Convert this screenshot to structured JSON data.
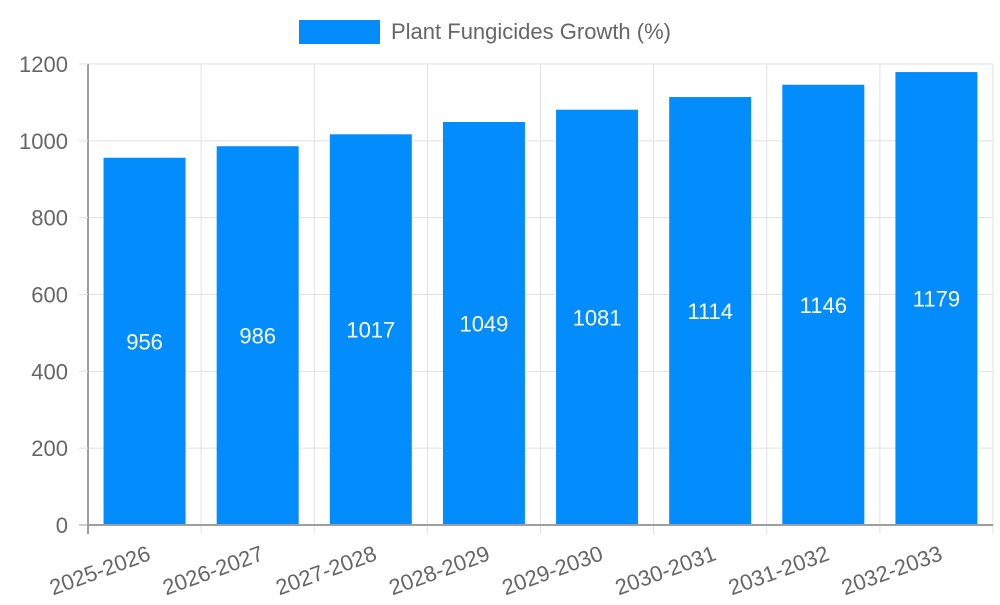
{
  "legend": {
    "label": "Plant Fungicides Growth (%)",
    "color": "#038cfc"
  },
  "chart_data": {
    "type": "bar",
    "title": "",
    "xlabel": "",
    "ylabel": "",
    "categories": [
      "2025-2026",
      "2026-2027",
      "2027-2028",
      "2028-2029",
      "2029-2030",
      "2030-2031",
      "2031-2032",
      "2032-2033"
    ],
    "series": [
      {
        "name": "Plant Fungicides Growth (%)",
        "values": [
          956,
          986,
          1017,
          1049,
          1081,
          1114,
          1146,
          1179
        ],
        "color": "#038cfc"
      }
    ],
    "ylim": [
      0,
      1200
    ],
    "yticks": [
      0,
      200,
      400,
      600,
      800,
      1000,
      1200
    ],
    "grid": true,
    "legend_position": "top",
    "data_labels": true
  }
}
